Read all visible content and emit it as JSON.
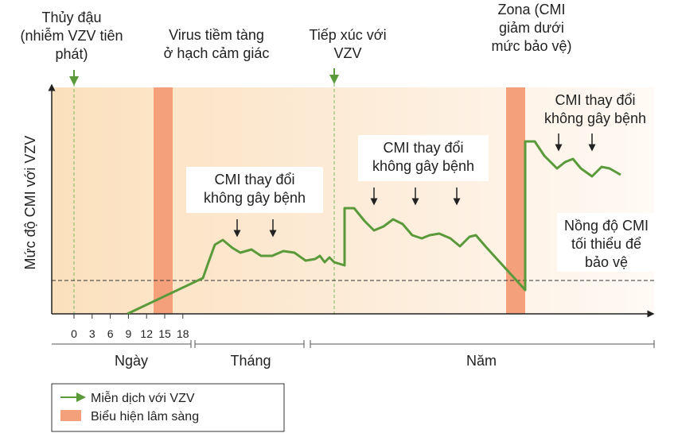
{
  "labels": {
    "chickenpox": [
      "Thủy đậu",
      "(nhiễm VZV tiên",
      "phát)"
    ],
    "latent": [
      "Virus tiềm tàng",
      "ở hạch cảm giác"
    ],
    "exposure": [
      "Tiếp xúc với",
      "VZV"
    ],
    "zoster": [
      "Zona (CMI",
      "giảm dưới",
      "mức bảo vệ)"
    ],
    "cmi_change_1": [
      "CMI thay đổi",
      "không gây bệnh"
    ],
    "cmi_change_2": [
      "CMI thay đổi",
      "không gây bệnh"
    ],
    "cmi_change_3": [
      "CMI thay đổi",
      "không gây bệnh"
    ],
    "threshold": [
      "Nồng độ CMI",
      "tối thiểu để",
      "bảo vệ"
    ]
  },
  "y_axis_label": "Mức độ CMI với VZV",
  "day_ticks": [
    "0",
    "3",
    "6",
    "9",
    "12",
    "15",
    "18"
  ],
  "periods": [
    "Ngày",
    "Tháng",
    "Năm"
  ],
  "legend": [
    "Miễn dịch với VZV",
    "Biểu hiện lâm sàng"
  ]
}
